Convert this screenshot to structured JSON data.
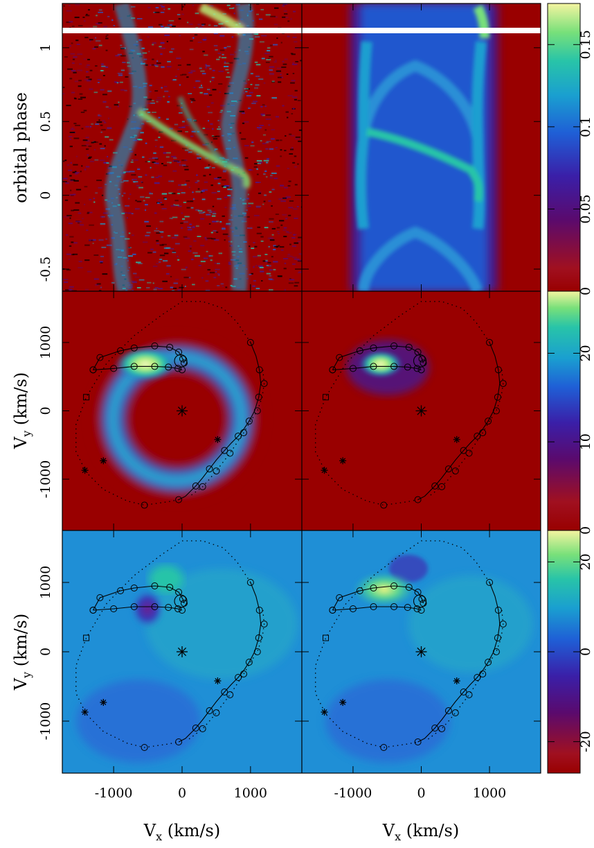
{
  "figure": {
    "colormap": [
      "#990000",
      "#a01020",
      "#5a0a6e",
      "#3a1fa8",
      "#1f5fd6",
      "#1a9fd0",
      "#28c4a8",
      "#78e07a",
      "#e8f27a",
      "#f8f8c8"
    ],
    "marker_color": "#000000"
  },
  "chart_data": [
    {
      "name": "trailed-spectra-observed",
      "type": "heatmap",
      "ylabel": "orbital phase",
      "xlim": [
        -1750,
        1750
      ],
      "ylim": [
        -0.65,
        1.3
      ],
      "y_ticks": [
        "-0.5",
        "0",
        "0.5",
        "1"
      ],
      "y_tick_values": [
        -0.5,
        0,
        0.5,
        1
      ],
      "grid": false
    },
    {
      "name": "trailed-spectra-model",
      "type": "heatmap",
      "xlim": [
        -1750,
        1750
      ],
      "ylim": [
        -0.65,
        1.3
      ],
      "grid": false
    },
    {
      "name": "colorbar-top",
      "type": "heatmap",
      "ticks": [
        "0",
        "0.05",
        "0.1",
        "0.15"
      ],
      "tick_values": [
        0,
        0.05,
        0.1,
        0.15
      ],
      "range": [
        0,
        0.175
      ]
    },
    {
      "name": "doppler-map-observed",
      "type": "heatmap",
      "ylabel": "Vy (km/s)",
      "xlim": [
        -1750,
        1750
      ],
      "ylim": [
        -1750,
        1750
      ],
      "y_ticks": [
        "-1000",
        "0",
        "1000"
      ],
      "y_tick_values": [
        -1000,
        0,
        1000
      ]
    },
    {
      "name": "doppler-map-model",
      "type": "heatmap",
      "xlim": [
        -1750,
        1750
      ],
      "ylim": [
        -1750,
        1750
      ]
    },
    {
      "name": "colorbar-middle",
      "type": "heatmap",
      "ticks": [
        "0",
        "10",
        "20"
      ],
      "tick_values": [
        0,
        10,
        20
      ],
      "range": [
        0,
        27
      ]
    },
    {
      "name": "doppler-map-residual-1",
      "type": "heatmap",
      "ylabel": "Vy (km/s)",
      "xlabel": "Vx (km/s)",
      "xlim": [
        -1750,
        1750
      ],
      "ylim": [
        -1750,
        1750
      ],
      "x_ticks": [
        "-1000",
        "0",
        "1000"
      ],
      "x_tick_values": [
        -1000,
        0,
        1000
      ],
      "y_ticks": [
        "-1000",
        "0",
        "1000"
      ],
      "y_tick_values": [
        -1000,
        0,
        1000
      ]
    },
    {
      "name": "doppler-map-residual-2",
      "type": "heatmap",
      "xlabel": "Vx (km/s)",
      "xlim": [
        -1750,
        1750
      ],
      "ylim": [
        -1750,
        1750
      ],
      "x_ticks": [
        "-1000",
        "0",
        "1000"
      ],
      "x_tick_values": [
        -1000,
        0,
        1000
      ]
    },
    {
      "name": "colorbar-bottom",
      "type": "heatmap",
      "ticks": [
        "-20",
        "0",
        "20"
      ],
      "tick_values": [
        -20,
        0,
        20
      ],
      "range": [
        -27,
        27
      ]
    }
  ],
  "overlay": {
    "stars": [
      [
        0,
        0
      ],
      [
        520,
        -420
      ],
      [
        -1150,
        -730
      ],
      [
        -1420,
        -870
      ]
    ],
    "upper_stream": [
      [
        -1300,
        600
      ],
      [
        -1200,
        780
      ],
      [
        -900,
        880
      ],
      [
        -700,
        920
      ],
      [
        -400,
        950
      ],
      [
        -180,
        930
      ],
      [
        -50,
        860
      ],
      [
        10,
        760
      ],
      [
        30,
        700
      ]
    ],
    "lower_stream": [
      [
        -1300,
        600
      ],
      [
        -1000,
        620
      ],
      [
        -700,
        650
      ],
      [
        -400,
        650
      ],
      [
        -200,
        640
      ],
      [
        -60,
        620
      ],
      [
        0,
        600
      ]
    ],
    "right_outer": [
      [
        1000,
        1000
      ],
      [
        1080,
        800
      ],
      [
        1130,
        600
      ],
      [
        1150,
        400
      ],
      [
        1120,
        200
      ],
      [
        1060,
        0
      ],
      [
        980,
        -150
      ],
      [
        900,
        -270
      ],
      [
        820,
        -370
      ],
      [
        720,
        -470
      ],
      [
        620,
        -580
      ],
      [
        500,
        -720
      ],
      [
        400,
        -850
      ],
      [
        300,
        -980
      ],
      [
        200,
        -1100
      ],
      [
        50,
        -1250
      ],
      [
        -50,
        -1300
      ]
    ],
    "right_inner": [
      [
        1180,
        600
      ],
      [
        1200,
        400
      ],
      [
        1170,
        200
      ],
      [
        1100,
        0
      ],
      [
        1000,
        -150
      ],
      [
        900,
        -320
      ],
      [
        800,
        -470
      ],
      [
        700,
        -620
      ],
      [
        600,
        -750
      ],
      [
        500,
        -880
      ],
      [
        400,
        -1000
      ],
      [
        300,
        -1110
      ],
      [
        100,
        -1260
      ]
    ],
    "outer_arc": [
      [
        1000,
        1000
      ],
      [
        800,
        1300
      ],
      [
        600,
        1500
      ],
      [
        300,
        1600
      ],
      [
        0,
        1600
      ],
      [
        -300,
        1400
      ],
      [
        -700,
        1100
      ],
      [
        -1100,
        700
      ],
      [
        -1400,
        200
      ],
      [
        -1550,
        -200
      ],
      [
        -1550,
        -600
      ],
      [
        -1400,
        -900
      ],
      [
        -1150,
        -1150
      ],
      [
        -800,
        -1320
      ],
      [
        -550,
        -1380
      ],
      [
        -200,
        -1330
      ],
      [
        -50,
        -1300
      ]
    ],
    "squares": [
      [
        -1400,
        200
      ]
    ],
    "stream_circle": [
      [
        -20,
        730
      ]
    ]
  }
}
